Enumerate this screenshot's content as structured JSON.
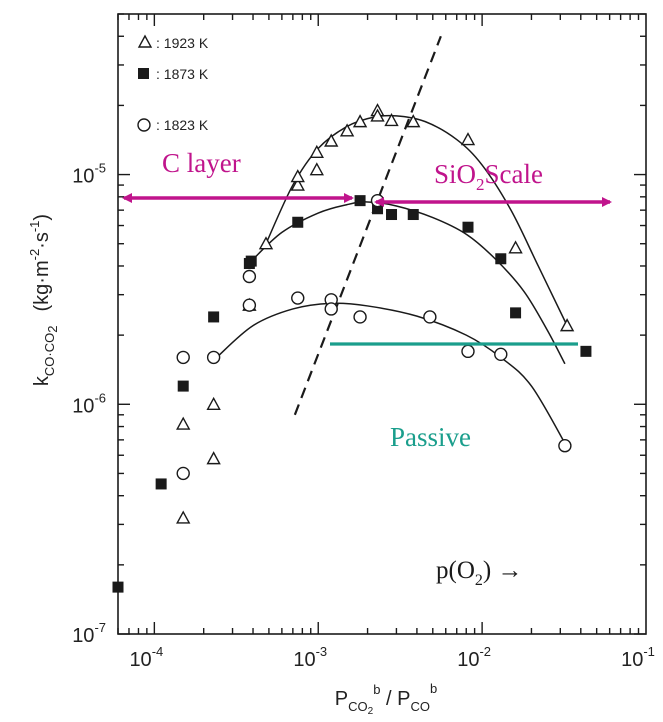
{
  "chart_data": {
    "type": "scatter",
    "title": "",
    "xscale": "log",
    "yscale": "log",
    "xlim": [
      6e-05,
      0.1
    ],
    "ylim": [
      1e-07,
      5e-05
    ],
    "x_ticks": [
      {
        "value": 0.0001,
        "base": "10",
        "exp": "-4"
      },
      {
        "value": 0.001,
        "base": "10",
        "exp": "-3"
      },
      {
        "value": 0.01,
        "base": "10",
        "exp": "-2"
      },
      {
        "value": 0.1,
        "base": "10",
        "exp": "-1"
      }
    ],
    "y_ticks": [
      {
        "value": 1e-07,
        "base": "10",
        "exp": "-7"
      },
      {
        "value": 1e-06,
        "base": "10",
        "exp": "-6"
      },
      {
        "value": 1e-05,
        "base": "10",
        "exp": "-5"
      }
    ],
    "xlabel": {
      "p1": "P",
      "s1": "CO",
      "s1b": "2",
      "sup1": "b",
      "sep": " / ",
      "p2": "P",
      "s2": "CO",
      "sup2": "b"
    },
    "ylabel": {
      "k": "k",
      "ksub": "CO·CO",
      "ksub2": "2",
      "units_open": "(kg·m",
      "u_exp1": "-2",
      "units_mid": "·s",
      "u_exp2": "-1",
      "units_close": ")"
    },
    "series": [
      {
        "name": ": 1923 K",
        "marker": "triangle",
        "points": [
          [
            0.00015,
            3.2e-07
          ],
          [
            0.00015,
            8.2e-07
          ],
          [
            0.00023,
            5.8e-07
          ],
          [
            0.00023,
            1e-06
          ],
          [
            0.00038,
            2.7e-06
          ],
          [
            0.00048,
            5e-06
          ],
          [
            0.00075,
            9e-06
          ],
          [
            0.00075,
            9.8e-06
          ],
          [
            0.00098,
            1.25e-05
          ],
          [
            0.00098,
            1.05e-05
          ],
          [
            0.0012,
            1.4e-05
          ],
          [
            0.0015,
            1.55e-05
          ],
          [
            0.0018,
            1.7e-05
          ],
          [
            0.0023,
            1.9e-05
          ],
          [
            0.0023,
            1.8e-05
          ],
          [
            0.0028,
            1.72e-05
          ],
          [
            0.0038,
            1.7e-05
          ],
          [
            0.0082,
            1.42e-05
          ],
          [
            0.016,
            4.8e-06
          ],
          [
            0.033,
            2.2e-06
          ]
        ]
      },
      {
        "name": ": 1873 K",
        "marker": "square",
        "points": [
          [
            6e-05,
            1.6e-07
          ],
          [
            0.00011,
            4.5e-07
          ],
          [
            0.00015,
            1.2e-06
          ],
          [
            0.00023,
            2.4e-06
          ],
          [
            0.00038,
            4.1e-06
          ],
          [
            0.00039,
            4.2e-06
          ],
          [
            0.00075,
            6.2e-06
          ],
          [
            0.0018,
            7.7e-06
          ],
          [
            0.0023,
            7.1e-06
          ],
          [
            0.0028,
            6.7e-06
          ],
          [
            0.0038,
            6.7e-06
          ],
          [
            0.0082,
            5.9e-06
          ],
          [
            0.013,
            4.3e-06
          ],
          [
            0.016,
            2.5e-06
          ],
          [
            0.043,
            1.7e-06
          ]
        ]
      },
      {
        "name": ": 1823 K",
        "marker": "circle",
        "points": [
          [
            0.00015,
            1.6e-06
          ],
          [
            0.00015,
            5e-07
          ],
          [
            0.00023,
            1.6e-06
          ],
          [
            0.00038,
            3.6e-06
          ],
          [
            0.00038,
            2.7e-06
          ],
          [
            0.00075,
            2.9e-06
          ],
          [
            0.0012,
            2.85e-06
          ],
          [
            0.0012,
            2.6e-06
          ],
          [
            0.0018,
            2.4e-06
          ],
          [
            0.0023,
            7.7e-06
          ],
          [
            0.0048,
            2.4e-06
          ],
          [
            0.0082,
            1.7e-06
          ],
          [
            0.013,
            1.65e-06
          ],
          [
            0.032,
            6.6e-07
          ]
        ]
      }
    ],
    "fitted_curves": [
      [
        [
          0.00048,
          5e-06
        ],
        [
          0.0007,
          9e-06
        ],
        [
          0.001,
          1.3e-05
        ],
        [
          0.0015,
          1.62e-05
        ],
        [
          0.0022,
          1.78e-05
        ],
        [
          0.003,
          1.8e-05
        ],
        [
          0.0045,
          1.7e-05
        ],
        [
          0.007,
          1.42e-05
        ],
        [
          0.01,
          1.1e-05
        ],
        [
          0.015,
          7e-06
        ],
        [
          0.022,
          4e-06
        ],
        [
          0.033,
          2.2e-06
        ]
      ],
      [
        [
          0.00039,
          4.2e-06
        ],
        [
          0.0006,
          5.6e-06
        ],
        [
          0.001,
          6.8e-06
        ],
        [
          0.0015,
          7.4e-06
        ],
        [
          0.002,
          7.6e-06
        ],
        [
          0.003,
          7.3e-06
        ],
        [
          0.005,
          6.5e-06
        ],
        [
          0.008,
          5.5e-06
        ],
        [
          0.012,
          4.3e-06
        ],
        [
          0.018,
          3.1e-06
        ],
        [
          0.025,
          2.1e-06
        ],
        [
          0.032,
          1.5e-06
        ]
      ],
      [
        [
          0.00024,
          1.6e-06
        ],
        [
          0.0004,
          2.2e-06
        ],
        [
          0.0007,
          2.6e-06
        ],
        [
          0.0012,
          2.75e-06
        ],
        [
          0.002,
          2.68e-06
        ],
        [
          0.004,
          2.42e-06
        ],
        [
          0.008,
          2e-06
        ],
        [
          0.013,
          1.6e-06
        ],
        [
          0.02,
          1.2e-06
        ],
        [
          0.033,
          6.5e-07
        ]
      ]
    ],
    "dashed_line": [
      [
        0.00072,
        9e-07
      ],
      [
        0.0056,
        4e-05
      ]
    ],
    "annotations": {
      "c_layer": "C layer",
      "sio2_p1": "SiO",
      "sio2_sub": "2",
      "sio2_p2": "Scale",
      "passive": "Passive",
      "po2": "p(O",
      "po2_sub": "2",
      "po2_close": ") →"
    },
    "colors": {
      "magenta": "#c0148c",
      "teal": "#1a9e8c",
      "ink": "#1a1a1a"
    }
  }
}
